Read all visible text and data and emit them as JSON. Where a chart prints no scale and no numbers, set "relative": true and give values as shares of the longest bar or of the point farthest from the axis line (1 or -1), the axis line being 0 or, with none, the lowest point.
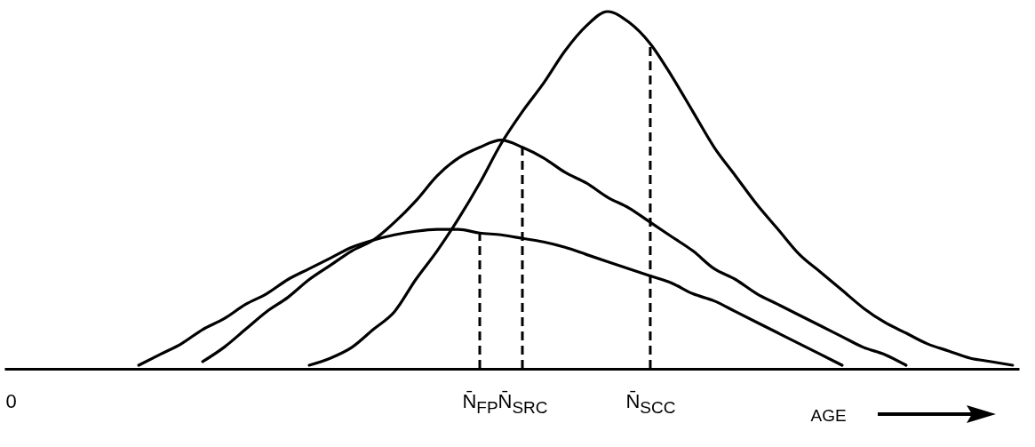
{
  "chart_data": {
    "type": "line",
    "relative": true,
    "xlabel": "AGE",
    "categories": [
      "0",
      null,
      null,
      null,
      null,
      null,
      null,
      null,
      null,
      null,
      null,
      null,
      null,
      null,
      null,
      null,
      null,
      null,
      null,
      null,
      null,
      null,
      "N̄$_{FP}$",
      null,
      "N̄$_{SRC}$",
      null,
      null,
      null,
      null,
      null,
      "N̄$_{SCC}$",
      null,
      null,
      null,
      null,
      null,
      null,
      null,
      null,
      null,
      null,
      null,
      null,
      null,
      null,
      null,
      null,
      null
    ],
    "series": [
      {
        "color": "#000000",
        "values": [
          null,
          null,
          null,
          null,
          null,
          null,
          0.01,
          0.04,
          0.07,
          0.11,
          0.14,
          0.18,
          0.21,
          0.25,
          0.28,
          0.31,
          0.34,
          0.36,
          0.375,
          0.385,
          0.39,
          0.39,
          0.38,
          0.375,
          0.365,
          0.355,
          0.34,
          0.32,
          0.3,
          0.28,
          0.26,
          0.24,
          0.21,
          0.19,
          0.16,
          0.13,
          0.1,
          0.07,
          0.04,
          0.01,
          null,
          null,
          null,
          null,
          null,
          null,
          null,
          null
        ]
      },
      {
        "color": "#000000",
        "values": [
          null,
          null,
          null,
          null,
          null,
          null,
          null,
          null,
          null,
          0.02,
          0.06,
          0.11,
          0.16,
          0.2,
          0.25,
          0.29,
          0.33,
          0.36,
          0.41,
          0.47,
          0.54,
          0.59,
          0.62,
          0.64,
          0.62,
          0.59,
          0.55,
          0.52,
          0.48,
          0.45,
          0.41,
          0.37,
          0.33,
          0.28,
          0.25,
          0.21,
          0.18,
          0.15,
          0.12,
          0.09,
          0.06,
          0.04,
          0.01,
          null,
          null,
          null,
          null,
          null
        ]
      },
      {
        "color": "#000000",
        "values": [
          null,
          null,
          null,
          null,
          null,
          null,
          null,
          null,
          null,
          null,
          null,
          null,
          null,
          null,
          0.01,
          0.03,
          0.06,
          0.11,
          0.16,
          0.25,
          0.33,
          0.42,
          0.52,
          0.63,
          0.72,
          0.8,
          0.89,
          0.96,
          1.0,
          0.97,
          0.91,
          0.82,
          0.72,
          0.62,
          0.54,
          0.46,
          0.39,
          0.32,
          0.27,
          0.22,
          0.17,
          0.13,
          0.1,
          0.07,
          0.05,
          0.03,
          0.02,
          0.01
        ]
      }
    ],
    "ref_lines": [
      {
        "axis": "x",
        "value": "N̄$_{FP}$",
        "line_style": "dashed"
      },
      {
        "axis": "x",
        "value": "N̄$_{SRC}$",
        "line_style": "dashed"
      },
      {
        "axis": "x",
        "value": "N̄$_{SCC}$",
        "line_style": "dashed"
      }
    ]
  }
}
